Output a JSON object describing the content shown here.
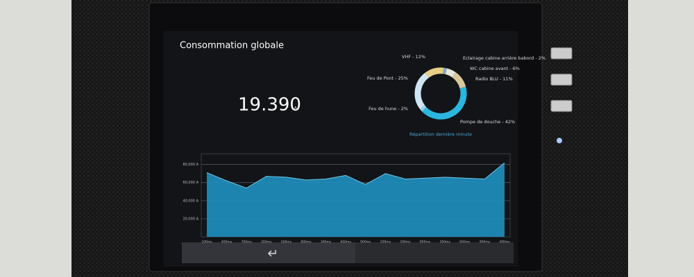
{
  "title": "Consommation globale",
  "reading": {
    "value": "19.390",
    "unit": "A"
  },
  "chart_data": [
    {
      "type": "donut",
      "subtitle": "Répartition dernière minute",
      "values": [
        12,
        2,
        6,
        11,
        42,
        2,
        25
      ],
      "value_labels": [
        "VHF - 12%",
        "Eclairage cabine arrière babord - 2%",
        "WC cabine avant - 6%",
        "Radio BLU - 11%",
        "Pompe de douche - 42%",
        "Feu de hune - 2%",
        "Feu de Pont - 25%"
      ],
      "colors": [
        "#e8cf86",
        "#7fa8c9",
        "#e6e6dc",
        "#d9c79a",
        "#2bb6e0",
        "#9ad4ea",
        "#cfe6f2"
      ]
    },
    {
      "type": "area",
      "color": "#1f8fc0",
      "line_color": "#6fc6ea",
      "categories": [
        "100ms",
        "400ms",
        "700ms",
        "200ms",
        "500ms",
        "800ms",
        "300ms",
        "600ms",
        "900ms",
        "200ms",
        "500ms",
        "800ms",
        "300ms",
        "600ms",
        "900ms",
        "400ms"
      ],
      "values": [
        71000,
        62000,
        54000,
        67000,
        66000,
        63000,
        64000,
        68000,
        58000,
        70000,
        64000,
        65000,
        66000,
        65000,
        64000,
        82000
      ],
      "ylim": [
        0,
        92000
      ],
      "yticks": [
        {
          "value": 20000,
          "label": "20,000 A"
        },
        {
          "value": 40000,
          "label": "40,000 A"
        },
        {
          "value": 60000,
          "label": "60,000 A"
        },
        {
          "value": 80000,
          "label": "80,000 A"
        }
      ],
      "grid": true
    }
  ]
}
